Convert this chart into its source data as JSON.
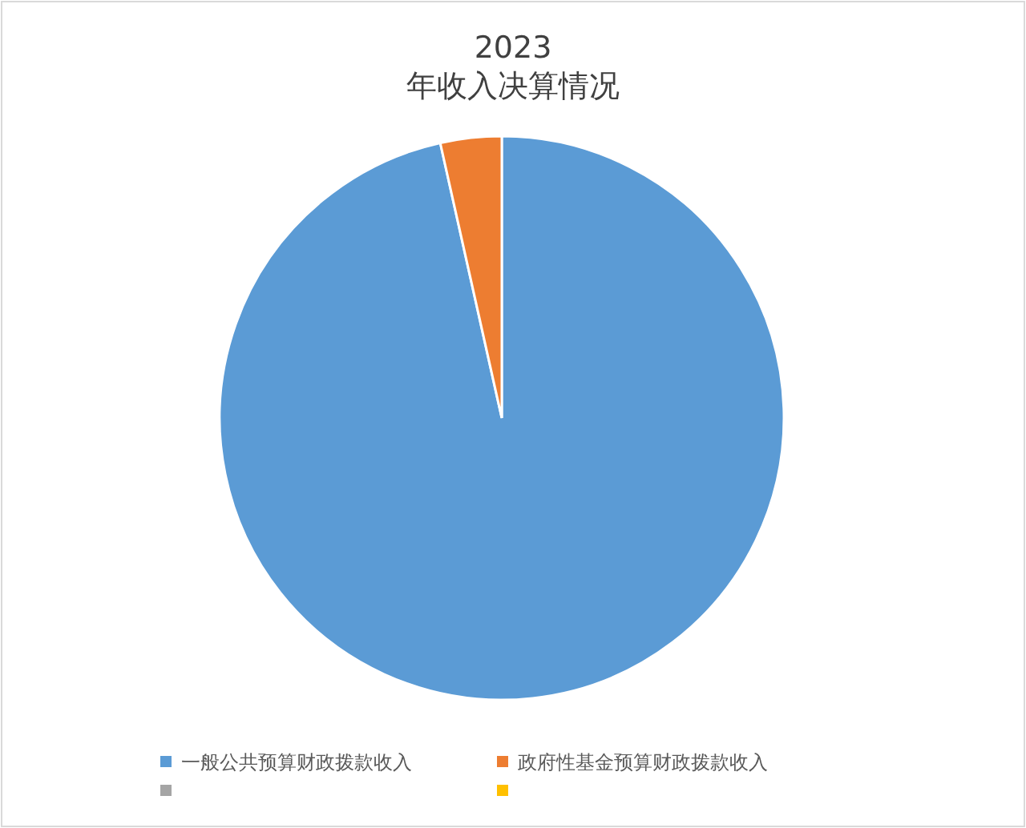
{
  "chart_data": {
    "type": "pie",
    "title": "2023\n年收入决算情况",
    "categories": [
      "一般公共预算财政拨款收入",
      "政府性基金预算财政拨款收入",
      null,
      null
    ],
    "values": [
      96.5,
      3.5,
      0,
      0
    ],
    "colors": [
      "#5b9bd5",
      "#ed7d31",
      "#a5a5a5",
      "#ffc000"
    ],
    "legend": "bottom"
  }
}
